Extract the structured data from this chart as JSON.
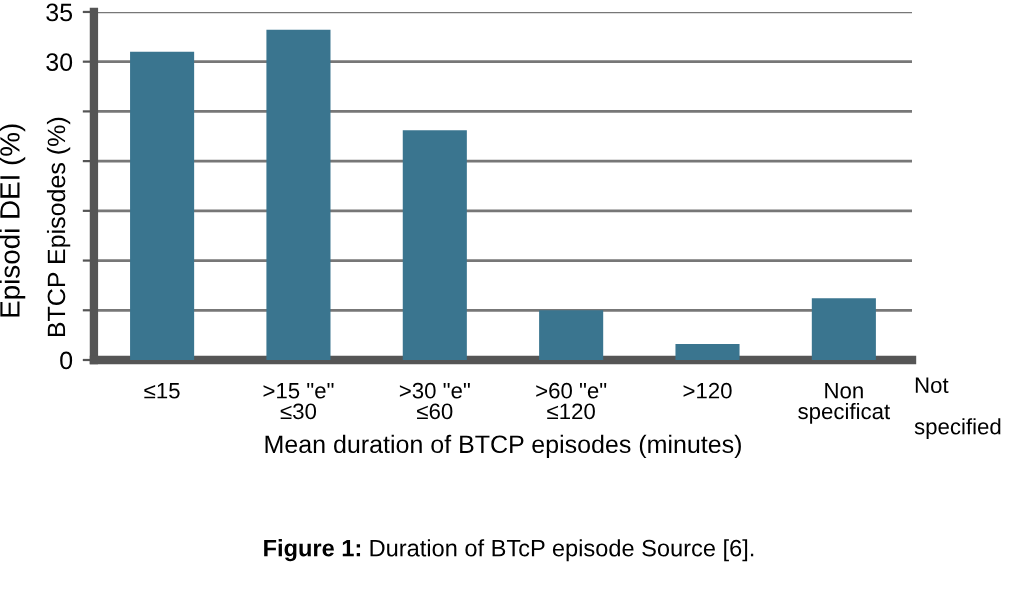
{
  "chart_data": {
    "type": "bar",
    "title": "Figure 1: Duration of BTcP episode Source [6].",
    "xlabel": "Mean duration of BTCP episodes (minutes)",
    "ylabel": "Episodi DEI (%)",
    "annotations": [
      "BTCP Episodes (%)",
      "Not\n\nspecified"
    ],
    "categories": [
      "≤15",
      ">15 \"e\"\n≤30",
      ">30 \"e\"\n≤60",
      ">60 \"e\"\n≤120",
      ">120",
      "Non\nspecificat"
    ],
    "values": [
      31,
      33.2,
      23.1,
      5,
      1.6,
      6.2
    ],
    "color": "#3a758f",
    "ylim": [
      0,
      35
    ],
    "yticks": [
      0,
      {
        "value": 5,
        "label": null
      },
      {
        "value": 10,
        "label": null
      },
      {
        "value": 15,
        "label": null
      },
      {
        "value": 20,
        "label": null
      },
      {
        "value": 25,
        "label": null
      },
      30,
      35
    ],
    "grid": "y"
  }
}
